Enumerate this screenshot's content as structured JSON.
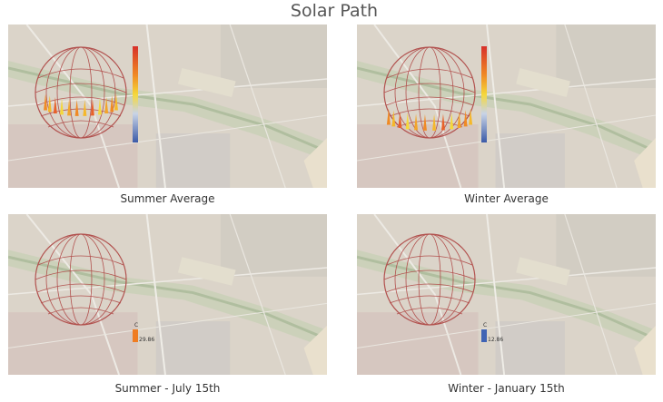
{
  "title": "Solar Path",
  "panels": [
    {
      "caption": "Summer Average"
    },
    {
      "caption": "Winter Average"
    },
    {
      "caption": "Summer - July 15th",
      "legend_unit": "C",
      "legend_value": "29.86"
    },
    {
      "caption": "Winter - January 15th",
      "legend_unit": "C",
      "legend_value": "12.86"
    }
  ]
}
